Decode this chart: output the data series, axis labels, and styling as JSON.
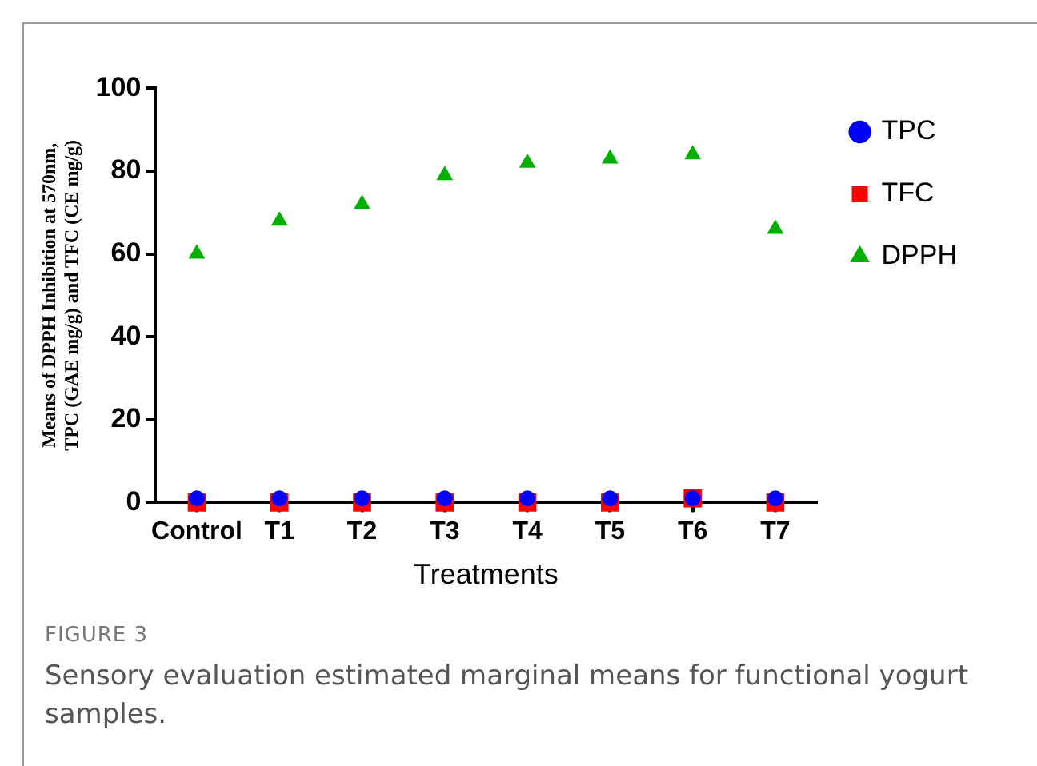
{
  "chart_data": {
    "type": "scatter",
    "xlabel": "Treatments",
    "ylabel": "Means of DPPH Inhibition at 570nm, TPC (GAE mg/g) and TFC (CE mg/g)",
    "categories": [
      "Control",
      "T1",
      "T2",
      "T3",
      "T4",
      "T5",
      "T6",
      "T7"
    ],
    "series": [
      {
        "name": "TPC",
        "color": "#0000ff",
        "marker": "circle",
        "values": [
          1,
          1,
          1,
          1,
          1,
          1,
          1,
          1
        ]
      },
      {
        "name": "TFC",
        "color": "#ff0000",
        "marker": "square",
        "values": [
          0,
          0,
          0,
          0,
          0,
          0,
          1,
          0
        ]
      },
      {
        "name": "DPPH",
        "color": "#00b000",
        "marker": "triangle",
        "values": [
          60,
          68,
          72,
          79,
          82,
          83,
          84,
          66
        ]
      }
    ],
    "ylim": [
      0,
      100
    ],
    "yticks": [
      0,
      20,
      40,
      60,
      80,
      100
    ],
    "grid": false,
    "legend": "top right",
    "annotations": [
      "FIGURE 3",
      "Sensory evaluation estimated marginal means for functional yogurt samples."
    ]
  }
}
